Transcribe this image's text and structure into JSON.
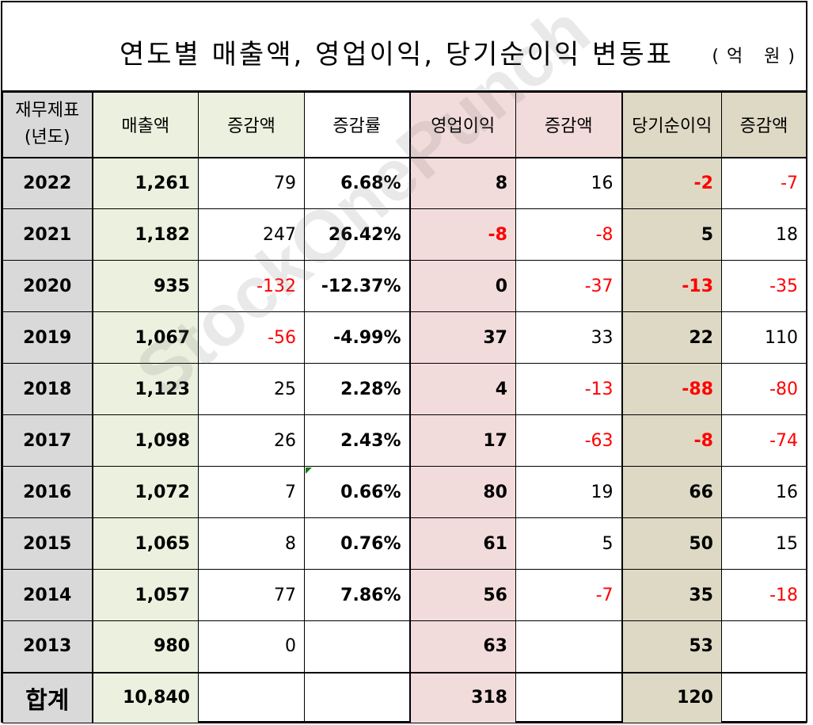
{
  "title": "연도별 매출액, 영업이익, 당기순이익 변동표",
  "unit": "(억 원)",
  "header": {
    "year_col": "재무제표\n(년도)",
    "revenue": "매출액",
    "revenue_change": "증감액",
    "revenue_rate": "증감률",
    "op_profit": "영업이익",
    "op_change": "증감액",
    "net_profit": "당기순이익",
    "net_change": "증감액"
  },
  "rows": [
    {
      "year": "2022",
      "revenue": "1,261",
      "revenue_change": "79",
      "revenue_rate": "6.68%",
      "op_profit": "8",
      "op_change": "16",
      "net_profit": "-2",
      "net_change": "-7"
    },
    {
      "year": "2021",
      "revenue": "1,182",
      "revenue_change": "247",
      "revenue_rate": "26.42%",
      "op_profit": "-8",
      "op_change": "-8",
      "net_profit": "5",
      "net_change": "18"
    },
    {
      "year": "2020",
      "revenue": "935",
      "revenue_change": "-132",
      "revenue_rate": "-12.37%",
      "op_profit": "0",
      "op_change": "-37",
      "net_profit": "-13",
      "net_change": "-35"
    },
    {
      "year": "2019",
      "revenue": "1,067",
      "revenue_change": "-56",
      "revenue_rate": "-4.99%",
      "op_profit": "37",
      "op_change": "33",
      "net_profit": "22",
      "net_change": "110"
    },
    {
      "year": "2018",
      "revenue": "1,123",
      "revenue_change": "25",
      "revenue_rate": "2.28%",
      "op_profit": "4",
      "op_change": "-13",
      "net_profit": "-88",
      "net_change": "-80"
    },
    {
      "year": "2017",
      "revenue": "1,098",
      "revenue_change": "26",
      "revenue_rate": "2.43%",
      "op_profit": "17",
      "op_change": "-63",
      "net_profit": "-8",
      "net_change": "-74"
    },
    {
      "year": "2016",
      "revenue": "1,072",
      "revenue_change": "7",
      "revenue_rate": "0.66%",
      "op_profit": "80",
      "op_change": "19",
      "net_profit": "66",
      "net_change": "16"
    },
    {
      "year": "2015",
      "revenue": "1,065",
      "revenue_change": "8",
      "revenue_rate": "0.76%",
      "op_profit": "61",
      "op_change": "5",
      "net_profit": "50",
      "net_change": "15"
    },
    {
      "year": "2014",
      "revenue": "1,057",
      "revenue_change": "77",
      "revenue_rate": "7.86%",
      "op_profit": "56",
      "op_change": "-7",
      "net_profit": "35",
      "net_change": "-18"
    },
    {
      "year": "2013",
      "revenue": "980",
      "revenue_change": "0",
      "revenue_rate": "",
      "op_profit": "63",
      "op_change": "",
      "net_profit": "53",
      "net_change": ""
    }
  ],
  "total": {
    "label": "합계",
    "revenue": "10,840",
    "op_profit": "318",
    "net_profit": "120"
  },
  "watermark": "StockOnePunch",
  "colors": {
    "negative": "#ff0000",
    "year_bg": "#d9d9d9",
    "revenue_bg": "#ebf1de",
    "op_bg": "#f2dcdb",
    "net_bg": "#ddd9c4"
  }
}
